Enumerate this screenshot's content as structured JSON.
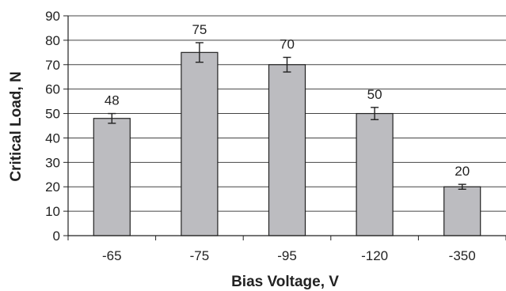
{
  "chart_data": {
    "type": "bar",
    "title": "",
    "xlabel": "Bias Voltage, V",
    "ylabel": "Critical Load, N",
    "categories": [
      "-65",
      "-75",
      "-95",
      "-120",
      "-350"
    ],
    "values": [
      48,
      75,
      70,
      50,
      20
    ],
    "error_bars": [
      2,
      4,
      3,
      2.5,
      1
    ],
    "data_labels": [
      "48",
      "75",
      "70",
      "50",
      "20"
    ],
    "ylim": [
      0,
      90
    ],
    "yticks": [
      0,
      10,
      20,
      30,
      40,
      50,
      60,
      70,
      80,
      90
    ],
    "grid": true,
    "legend": "none",
    "colors": {
      "bar_fill": "#bcbcc0",
      "bar_stroke": "#222222",
      "grid": "#444444",
      "axis": "#222222"
    }
  }
}
